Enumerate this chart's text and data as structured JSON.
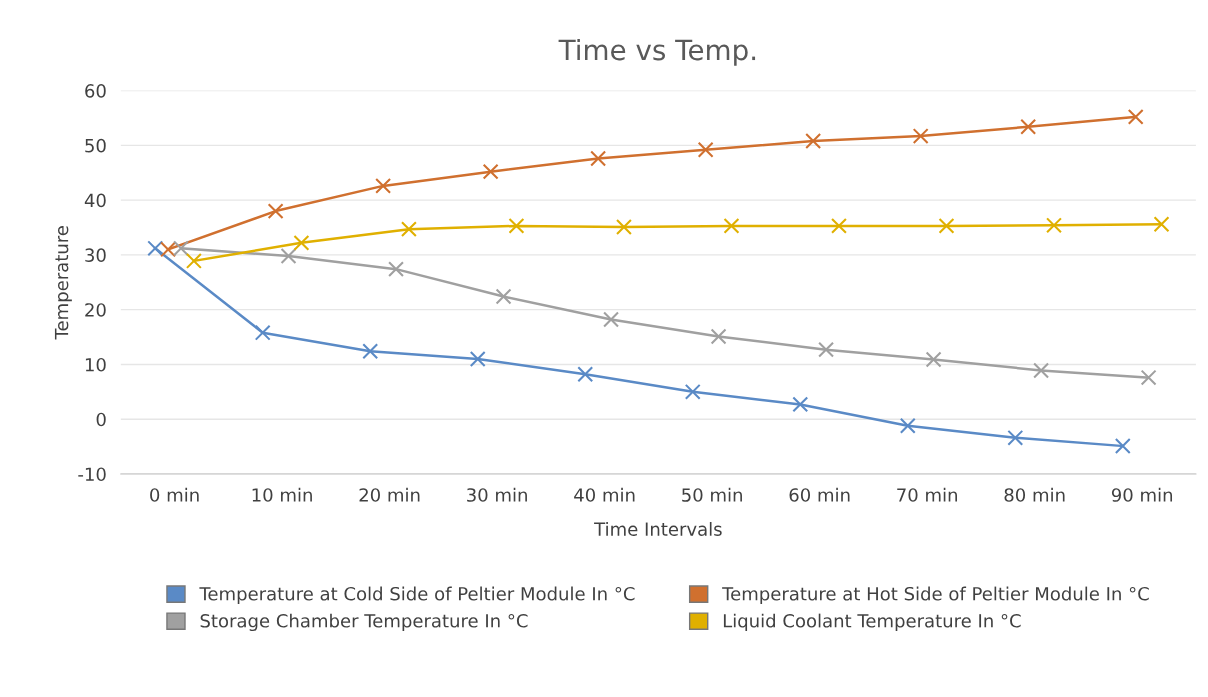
{
  "chart_data": {
    "type": "line",
    "title": "Time vs Temp.",
    "xlabel": "Time Intervals",
    "ylabel": "Temperature",
    "categories": [
      "0 min",
      "10 min",
      "20 min",
      "30 min",
      "40 min",
      "50 min",
      "60 min",
      "70 min",
      "80 min",
      "90 min"
    ],
    "series": [
      {
        "name": "Temperature at Cold Side of Peltier Module In °C",
        "color": "#5a8ac6",
        "values": [
          31.2,
          15.8,
          12.4,
          11,
          8.2,
          5,
          2.7,
          -1.2,
          -3.4,
          -4.9
        ]
      },
      {
        "name": "Temperature at Hot Side of Peltier Module In °C",
        "color": "#d0702f",
        "values": [
          31,
          38,
          42.6,
          45.2,
          47.6,
          49.2,
          50.8,
          51.7,
          53.4,
          55.2
        ]
      },
      {
        "name": "Storage Chamber Temperature In °C",
        "color": "#a0a0a0",
        "values": [
          31.2,
          29.8,
          27.4,
          22.4,
          18.2,
          15.1,
          12.7,
          10.9,
          8.9,
          7.6
        ]
      },
      {
        "name": "Liquid Coolant Temperature In °C",
        "color": "#e0b000",
        "values": [
          28.9,
          32.2,
          34.7,
          35.3,
          35.1,
          35.3,
          35.3,
          35.3,
          35.4,
          35.6
        ]
      }
    ],
    "ylim": [
      -10,
      60
    ],
    "yticks": [
      -10,
      0,
      10,
      20,
      30,
      40,
      50,
      60
    ],
    "grid": "y",
    "legend": "bottom",
    "marker": "cross",
    "line_style": "solid"
  }
}
